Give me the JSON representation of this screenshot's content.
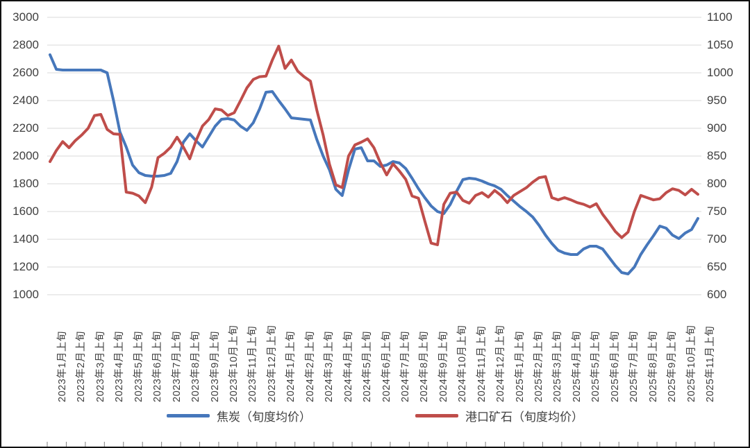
{
  "chart_data": {
    "type": "line",
    "title": "",
    "x_unit": "ten-day period (旬), 3 points per labeled month",
    "x_tick_labels": [
      "2023年1月上旬",
      "2023年2月上旬",
      "2023年3月上旬",
      "2023年4月上旬",
      "2023年5月上旬",
      "2023年6月上旬",
      "2023年7月上旬",
      "2023年8月上旬",
      "2023年9月上旬",
      "2023年10月上旬",
      "2023年11月上旬",
      "2023年12月上旬",
      "2024年1月上旬",
      "2024年2月上旬",
      "2024年3月上旬",
      "2024年4月上旬",
      "2024年5月上旬",
      "2024年6月上旬",
      "2024年7月上旬",
      "2024年8月上旬",
      "2024年9月上旬",
      "2024年10月上旬",
      "2024年11月上旬",
      "2024年12月上旬",
      "2025年1月上旬",
      "2025年2月上旬",
      "2025年3月上旬",
      "2025年4月上旬",
      "2025年5月上旬",
      "2025年6月上旬",
      "2025年7月上旬",
      "2025年8月上旬",
      "2025年9月上旬",
      "2025年10月上旬",
      "2025年11月上旬"
    ],
    "left_axis": {
      "min": 1000,
      "max": 3000,
      "step": 200,
      "ticks": [
        "3000",
        "2800",
        "2600",
        "2400",
        "2200",
        "2000",
        "1800",
        "1600",
        "1400",
        "1200",
        "1000"
      ]
    },
    "right_axis": {
      "min": 600,
      "max": 1100,
      "step": 50,
      "ticks": [
        "1100",
        "1050",
        "1000",
        "950",
        "900",
        "850",
        "800",
        "750",
        "700",
        "650",
        "600"
      ]
    },
    "grid": true,
    "legend_position": "bottom",
    "series": [
      {
        "name": "焦炭（旬度均价）",
        "axis": "left",
        "color": "#4677bb",
        "values": [
          2730,
          2625,
          2620,
          2620,
          2620,
          2620,
          2620,
          2620,
          2620,
          2600,
          2400,
          2175,
          2065,
          1935,
          1880,
          1860,
          1855,
          1855,
          1860,
          1875,
          1960,
          2100,
          2160,
          2110,
          2065,
          2140,
          2215,
          2265,
          2270,
          2260,
          2215,
          2185,
          2240,
          2340,
          2460,
          2465,
          2400,
          2340,
          2275,
          2270,
          2265,
          2260,
          2120,
          2000,
          1900,
          1760,
          1715,
          1900,
          2050,
          2060,
          1965,
          1965,
          1925,
          1935,
          1960,
          1950,
          1910,
          1840,
          1765,
          1700,
          1640,
          1600,
          1585,
          1650,
          1745,
          1830,
          1840,
          1835,
          1820,
          1800,
          1785,
          1760,
          1715,
          1675,
          1635,
          1600,
          1560,
          1500,
          1430,
          1370,
          1320,
          1300,
          1290,
          1290,
          1330,
          1350,
          1350,
          1330,
          1270,
          1210,
          1160,
          1150,
          1200,
          1290,
          1360,
          1425,
          1495,
          1480,
          1430,
          1405,
          1445,
          1470,
          1550
        ]
      },
      {
        "name": "港口矿石（旬度均价）",
        "axis": "right",
        "color": "#bf4d4a",
        "values": [
          840,
          860,
          876,
          865,
          878,
          888,
          900,
          923,
          925,
          898,
          890,
          889,
          785,
          783,
          778,
          766,
          794,
          847,
          855,
          866,
          884,
          866,
          845,
          878,
          904,
          916,
          935,
          933,
          923,
          928,
          950,
          973,
          988,
          993,
          994,
          1023,
          1048,
          1008,
          1023,
          1003,
          993,
          985,
          933,
          888,
          835,
          798,
          793,
          850,
          870,
          875,
          881,
          865,
          838,
          816,
          836,
          823,
          808,
          778,
          774,
          733,
          693,
          690,
          763,
          783,
          785,
          770,
          765,
          779,
          784,
          776,
          788,
          779,
          766,
          779,
          786,
          793,
          803,
          811,
          813,
          775,
          771,
          775,
          771,
          766,
          763,
          758,
          764,
          745,
          730,
          714,
          703,
          713,
          750,
          779,
          775,
          771,
          773,
          784,
          791,
          788,
          780,
          790,
          781
        ]
      }
    ]
  },
  "legend": [
    {
      "label": "焦炭（旬度均价）",
      "color": "#4677bb"
    },
    {
      "label": "港口矿石（旬度均价）",
      "color": "#bf4d4a"
    }
  ],
  "colors": {
    "grid": "#d9d9d9",
    "axis_text": "#3f3f3f",
    "tick": "#7f7f7f",
    "background": "#ffffff"
  }
}
